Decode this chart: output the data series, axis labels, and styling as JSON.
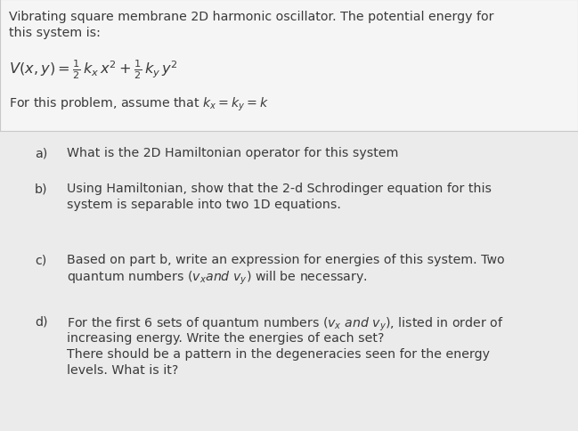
{
  "bg_color": "#ebebeb",
  "box_bg": "#f5f5f5",
  "box_border": "#c8c8c8",
  "text_color": "#3a3a3a",
  "figsize": [
    6.49,
    4.85
  ],
  "dpi": 100,
  "font_size": 10.2,
  "header_line1": "Vibrating square membrane 2D harmonic oscillator. The potential energy for",
  "header_line2": "this system is:",
  "formula": "$V(x,y) = \\frac{1}{2}\\, k_x\\, x^2 + \\frac{1}{2}\\, k_y\\, y^2$",
  "constraint": "For this problem, assume that $k_x = k_y = k$",
  "items": [
    {
      "label": "a)",
      "lines": [
        "What is the 2D Hamiltonian operator for this system"
      ]
    },
    {
      "label": "b)",
      "lines": [
        "Using Hamiltonian, show that the 2-d Schrodinger equation for this",
        "system is separable into two 1D equations."
      ]
    },
    {
      "label": "c)",
      "lines": [
        "Based on part b, write an expression for energies of this system. Two",
        "quantum numbers ($v_x$$\\it{and}$ $v_y$) will be necessary."
      ]
    },
    {
      "label": "d)",
      "lines": [
        "For the first 6 sets of quantum numbers ($v_x$ $\\it{and}$ $v_y$), listed in order of",
        "increasing energy. Write the energies of each set?",
        "There should be a pattern in the degeneracies seen for the energy",
        "levels. What is it?"
      ]
    }
  ]
}
